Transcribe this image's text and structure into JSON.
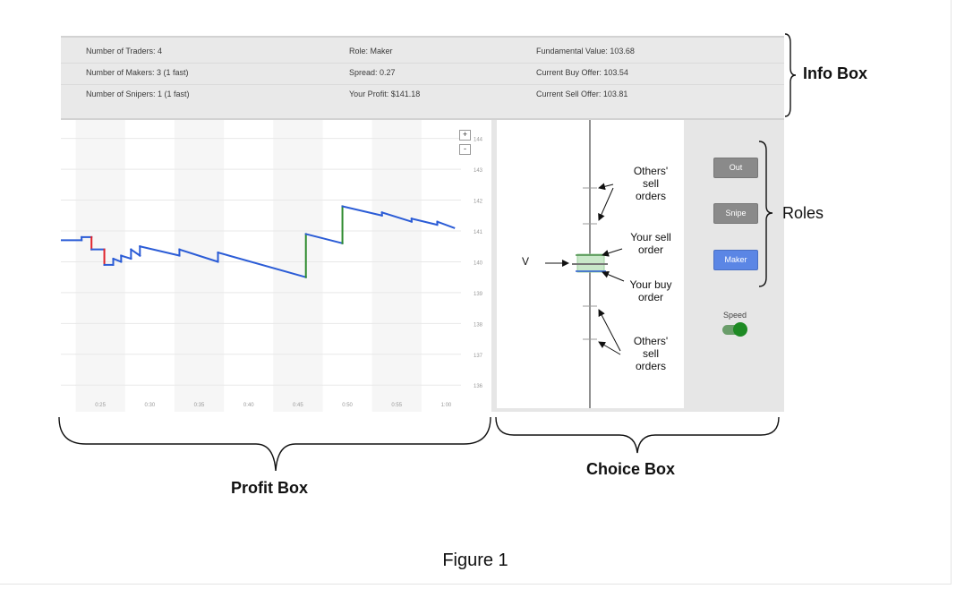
{
  "info": {
    "traders": "Number of Traders: 4",
    "makers": "Number of Makers: 3 (1 fast)",
    "snipers": "Number of Snipers: 1 (1 fast)",
    "role": "Role: Maker",
    "spread": "Spread: 0.27",
    "profit": "Your Profit: $141.18",
    "fundamental": "Fundamental Value: 103.68",
    "buy_offer": "Current Buy Offer: 103.54",
    "sell_offer": "Current Sell Offer: 103.81"
  },
  "labels": {
    "info_box": "Info Box",
    "roles": "Roles",
    "profit_box": "Profit Box",
    "choice_box": "Choice Box",
    "figure": "Figure 1"
  },
  "zoom": {
    "plus": "+",
    "minus": "-"
  },
  "roles": {
    "out": "Out",
    "snipe": "Snipe",
    "maker": "Maker"
  },
  "speed": {
    "label": "Speed",
    "on": true
  },
  "choice": {
    "v_label": "V",
    "others_sell_top": [
      "Others'",
      "sell",
      "orders"
    ],
    "your_sell": [
      "Your sell",
      "order"
    ],
    "your_buy": [
      "Your buy",
      "order"
    ],
    "others_sell_bottom": [
      "Others'",
      "sell",
      "orders"
    ]
  },
  "colors": {
    "line": "#2b5cd6",
    "drop": "#e0242b",
    "jump": "#2e8b2e",
    "toggle": "#1e8a24",
    "maker_button": "#5b86e5"
  },
  "chart_data": {
    "type": "line",
    "title": "",
    "xlabel": "",
    "ylabel": "",
    "xlim": [
      21,
      61.5
    ],
    "ylim": [
      135.6,
      144.6
    ],
    "x_ticks": [
      {
        "v": 25,
        "label": "0:25"
      },
      {
        "v": 30,
        "label": "0:30"
      },
      {
        "v": 35,
        "label": "0:35"
      },
      {
        "v": 40,
        "label": "0:40"
      },
      {
        "v": 45,
        "label": "0:45"
      },
      {
        "v": 50,
        "label": "0:50"
      },
      {
        "v": 55,
        "label": "0:55"
      },
      {
        "v": 60,
        "label": "1:00"
      }
    ],
    "y_ticks": [
      {
        "v": 136,
        "label": "136"
      },
      {
        "v": 137,
        "label": "137"
      },
      {
        "v": 138,
        "label": "138"
      },
      {
        "v": 139,
        "label": "139"
      },
      {
        "v": 140,
        "label": "140"
      },
      {
        "v": 141,
        "label": "141"
      },
      {
        "v": 142,
        "label": "142"
      },
      {
        "v": 143,
        "label": "143"
      },
      {
        "v": 144,
        "label": "144"
      }
    ],
    "segments": [
      {
        "kind": "flat",
        "x": [
          21,
          23.1
        ],
        "y": [
          140.7,
          140.7
        ]
      },
      {
        "kind": "up",
        "x": [
          23.1,
          23.1
        ],
        "y": [
          140.7,
          140.8
        ]
      },
      {
        "kind": "flat",
        "x": [
          23.1,
          24.1
        ],
        "y": [
          140.8,
          140.8
        ]
      },
      {
        "kind": "down",
        "x": [
          24.1,
          24.1
        ],
        "y": [
          140.8,
          140.4
        ]
      },
      {
        "kind": "flat",
        "x": [
          24.1,
          25.4
        ],
        "y": [
          140.4,
          140.4
        ]
      },
      {
        "kind": "down",
        "x": [
          25.4,
          25.4
        ],
        "y": [
          140.4,
          139.9
        ]
      },
      {
        "kind": "flat",
        "x": [
          25.4,
          26.3
        ],
        "y": [
          139.9,
          139.9
        ]
      },
      {
        "kind": "up",
        "x": [
          26.3,
          26.3
        ],
        "y": [
          139.9,
          140.1
        ]
      },
      {
        "kind": "decay",
        "x": [
          26.3,
          27.1
        ],
        "y": [
          140.1,
          140.0
        ]
      },
      {
        "kind": "up",
        "x": [
          27.1,
          27.1
        ],
        "y": [
          140.0,
          140.2
        ]
      },
      {
        "kind": "decay",
        "x": [
          27.1,
          28.1
        ],
        "y": [
          140.2,
          140.1
        ]
      },
      {
        "kind": "up",
        "x": [
          28.1,
          28.1
        ],
        "y": [
          140.1,
          140.4
        ]
      },
      {
        "kind": "decay",
        "x": [
          28.1,
          29.0
        ],
        "y": [
          140.4,
          140.2
        ]
      },
      {
        "kind": "up",
        "x": [
          29.0,
          29.0
        ],
        "y": [
          140.2,
          140.5
        ]
      },
      {
        "kind": "decay",
        "x": [
          29.0,
          33.0
        ],
        "y": [
          140.5,
          140.2
        ]
      },
      {
        "kind": "up",
        "x": [
          33.0,
          33.0
        ],
        "y": [
          140.2,
          140.4
        ]
      },
      {
        "kind": "decay",
        "x": [
          33.0,
          36.9
        ],
        "y": [
          140.4,
          140.0
        ]
      },
      {
        "kind": "up",
        "x": [
          36.9,
          36.9
        ],
        "y": [
          140.0,
          140.3
        ]
      },
      {
        "kind": "decay",
        "x": [
          36.9,
          45.8
        ],
        "y": [
          140.3,
          139.5
        ]
      },
      {
        "kind": "jump",
        "x": [
          45.8,
          45.8
        ],
        "y": [
          139.5,
          140.9
        ]
      },
      {
        "kind": "decay",
        "x": [
          45.8,
          49.5
        ],
        "y": [
          140.9,
          140.6
        ]
      },
      {
        "kind": "jump",
        "x": [
          49.5,
          49.5
        ],
        "y": [
          140.6,
          141.8
        ]
      },
      {
        "kind": "decay",
        "x": [
          49.5,
          53.5
        ],
        "y": [
          141.8,
          141.5
        ]
      },
      {
        "kind": "up",
        "x": [
          53.5,
          53.5
        ],
        "y": [
          141.5,
          141.6
        ]
      },
      {
        "kind": "decay",
        "x": [
          53.5,
          56.5
        ],
        "y": [
          141.6,
          141.3
        ]
      },
      {
        "kind": "up",
        "x": [
          56.5,
          56.5
        ],
        "y": [
          141.3,
          141.4
        ]
      },
      {
        "kind": "decay",
        "x": [
          56.5,
          59.1
        ],
        "y": [
          141.4,
          141.2
        ]
      },
      {
        "kind": "up",
        "x": [
          59.1,
          59.1
        ],
        "y": [
          141.2,
          141.3
        ]
      },
      {
        "kind": "decay",
        "x": [
          59.1,
          60.8
        ],
        "y": [
          141.3,
          141.1
        ]
      }
    ]
  }
}
